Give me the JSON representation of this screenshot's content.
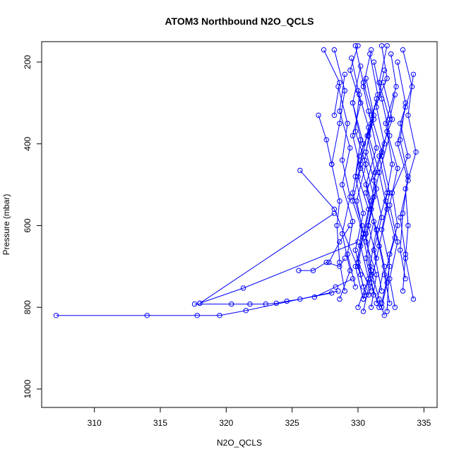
{
  "chart_data": {
    "type": "scatter",
    "title": "ATOM3 Northbound N2O_QCLS",
    "xlabel": "N2O_QCLS",
    "ylabel": "Pressure (mbar)",
    "xlim": [
      306,
      336
    ],
    "ylim": [
      1045,
      150
    ],
    "y_reversed": true,
    "x_ticks": [
      310,
      315,
      320,
      325,
      330,
      335
    ],
    "y_ticks": [
      200,
      400,
      600,
      800,
      1000
    ],
    "grid": false,
    "series": [
      {
        "color": "#0000ff",
        "marker": "open-circle",
        "line": true,
        "segments": [
          [
            [
              331.8,
              160
            ],
            [
              332.2,
              240
            ],
            [
              331.0,
              330
            ],
            [
              331.8,
              420
            ],
            [
              330.6,
              520
            ],
            [
              331.4,
              610
            ],
            [
              330.9,
              700
            ],
            [
              331.6,
              780
            ],
            [
              332.0,
              820
            ]
          ],
          [
            [
              329.8,
              160
            ],
            [
              330.4,
              250
            ],
            [
              331.2,
              340
            ],
            [
              330.1,
              430
            ],
            [
              329.6,
              520
            ],
            [
              330.3,
              600
            ],
            [
              330.0,
              690
            ],
            [
              331.0,
              760
            ]
          ],
          [
            [
              333.4,
              170
            ],
            [
              334.1,
              260
            ],
            [
              333.2,
              350
            ],
            [
              333.8,
              430
            ],
            [
              332.6,
              520
            ],
            [
              333.0,
              600
            ],
            [
              332.4,
              670
            ],
            [
              332.2,
              810
            ]
          ],
          [
            [
              328.2,
              170
            ],
            [
              329.0,
              270
            ],
            [
              328.6,
              350
            ],
            [
              328.0,
              450
            ],
            [
              328.6,
              540
            ],
            [
              328.4,
              600
            ],
            [
              328.6,
              690
            ],
            [
              329.0,
              760
            ]
          ],
          [
            [
              330.9,
              180
            ],
            [
              331.5,
              280
            ],
            [
              330.7,
              380
            ],
            [
              331.3,
              470
            ],
            [
              331.0,
              560
            ],
            [
              330.6,
              640
            ],
            [
              331.4,
              720
            ],
            [
              331.0,
              800
            ]
          ],
          [
            [
              332.5,
              180
            ],
            [
              332.9,
              260
            ],
            [
              332.1,
              350
            ],
            [
              332.6,
              450
            ],
            [
              332.1,
              540
            ],
            [
              332.8,
              630
            ],
            [
              332.0,
              720
            ],
            [
              332.4,
              790
            ]
          ],
          [
            [
              329.5,
              190
            ],
            [
              330.1,
              280
            ],
            [
              329.8,
              370
            ],
            [
              330.6,
              450
            ],
            [
              329.9,
              540
            ],
            [
              330.4,
              620
            ],
            [
              330.0,
              700
            ],
            [
              330.6,
              770
            ]
          ],
          [
            [
              331.2,
              200
            ],
            [
              331.8,
              290
            ],
            [
              332.4,
              380
            ],
            [
              331.6,
              470
            ],
            [
              332.2,
              560
            ],
            [
              331.6,
              650
            ],
            [
              332.2,
              740
            ],
            [
              331.8,
              800
            ]
          ],
          [
            [
              333.0,
              200
            ],
            [
              333.6,
              300
            ],
            [
              333.2,
              390
            ],
            [
              333.8,
              480
            ],
            [
              333.4,
              570
            ],
            [
              333.2,
              660
            ],
            [
              333.6,
              730
            ]
          ],
          [
            [
              330.2,
              210
            ],
            [
              329.6,
              300
            ],
            [
              330.4,
              400
            ],
            [
              330.0,
              480
            ],
            [
              330.8,
              560
            ],
            [
              330.2,
              650
            ],
            [
              330.8,
              730
            ],
            [
              330.0,
              800
            ]
          ],
          [
            [
              332.0,
              220
            ],
            [
              331.4,
              310
            ],
            [
              332.0,
              400
            ],
            [
              331.2,
              490
            ],
            [
              331.8,
              580
            ],
            [
              331.2,
              660
            ],
            [
              331.8,
              760
            ]
          ],
          [
            [
              329.0,
              230
            ],
            [
              328.6,
              320
            ],
            [
              329.4,
              410
            ],
            [
              328.8,
              500
            ],
            [
              329.6,
              590
            ],
            [
              329.2,
              670
            ],
            [
              329.8,
              750
            ]
          ],
          [
            [
              334.2,
              230
            ],
            [
              333.8,
              330
            ],
            [
              334.4,
              420
            ],
            [
              333.6,
              510
            ],
            [
              333.8,
              600
            ],
            [
              333.6,
              680
            ],
            [
              334.2,
              780
            ]
          ],
          [
            [
              330.6,
              240
            ],
            [
              331.2,
              330
            ],
            [
              330.6,
              420
            ],
            [
              331.4,
              510
            ],
            [
              330.8,
              600
            ],
            [
              331.4,
              680
            ],
            [
              330.8,
              770
            ]
          ],
          [
            [
              331.9,
              250
            ],
            [
              332.6,
              340
            ],
            [
              331.6,
              430
            ],
            [
              332.2,
              520
            ],
            [
              331.4,
              610
            ],
            [
              332.0,
              700
            ],
            [
              331.4,
              790
            ]
          ],
          [
            [
              328.5,
              260
            ],
            [
              329.2,
              350
            ],
            [
              328.8,
              440
            ],
            [
              329.4,
              530
            ],
            [
              328.8,
              620
            ],
            [
              329.4,
              710
            ],
            [
              328.6,
              780
            ]
          ],
          [
            [
              330.0,
              270
            ],
            [
              330.8,
              360
            ],
            [
              330.2,
              450
            ],
            [
              331.0,
              540
            ],
            [
              330.4,
              630
            ],
            [
              331.0,
              720
            ],
            [
              330.4,
              810
            ]
          ],
          [
            [
              332.8,
              280
            ],
            [
              332.2,
              370
            ],
            [
              333.0,
              460
            ],
            [
              332.4,
              550
            ],
            [
              333.0,
              640
            ],
            [
              332.4,
              730
            ],
            [
              332.8,
              800
            ]
          ],
          [
            [
              331.4,
              290
            ],
            [
              330.8,
              380
            ],
            [
              331.6,
              470
            ],
            [
              331.0,
              560
            ],
            [
              331.6,
              650
            ],
            [
              331.0,
              740
            ],
            [
              331.6,
              800
            ]
          ],
          [
            [
              329.6,
              300
            ],
            [
              330.2,
              390
            ],
            [
              329.8,
              480
            ],
            [
              330.4,
              570
            ],
            [
              329.8,
              660
            ],
            [
              330.4,
              750
            ]
          ],
          [
            [
              333.6,
              310
            ],
            [
              333.0,
              400
            ],
            [
              333.8,
              490
            ],
            [
              333.2,
              580
            ],
            [
              333.6,
              670
            ],
            [
              333.4,
              760
            ]
          ],
          [
            [
              330.8,
              320
            ],
            [
              331.4,
              410
            ],
            [
              330.6,
              500
            ],
            [
              331.2,
              590
            ],
            [
              330.6,
              680
            ],
            [
              331.2,
              770
            ]
          ],
          [
            [
              331.0,
              170
            ],
            [
              330.4,
              260
            ],
            [
              331.0,
              350
            ],
            [
              330.5,
              440
            ],
            [
              331.2,
              530
            ],
            [
              330.6,
              620
            ],
            [
              331.0,
              710
            ],
            [
              330.4,
              780
            ]
          ],
          [
            [
              332.2,
              160
            ],
            [
              331.6,
              250
            ],
            [
              332.4,
              340
            ],
            [
              331.8,
              430
            ],
            [
              332.4,
              520
            ],
            [
              331.8,
              610
            ],
            [
              332.4,
              700
            ],
            [
              331.8,
              790
            ]
          ],
          [
            [
              330.0,
              160
            ],
            [
              329.4,
              220
            ],
            [
              330.2,
              300
            ],
            [
              329.6,
              380
            ],
            [
              330.2,
              460
            ],
            [
              329.6,
              540
            ],
            [
              330.4,
              620
            ],
            [
              329.8,
              700
            ],
            [
              330.4,
              780
            ]
          ],
          [
            [
              327.0,
              330
            ],
            [
              327.6,
              390
            ],
            [
              328.0,
              450
            ]
          ],
          [
            [
              325.6,
              465
            ],
            [
              328.2,
              560
            ],
            [
              330.2,
              720
            ]
          ],
          [
            [
              327.4,
              170
            ],
            [
              328.6,
              250
            ],
            [
              328.2,
              330
            ]
          ],
          [
            [
              307.1,
              820
            ],
            [
              314.0,
              820
            ],
            [
              317.8,
              820
            ],
            [
              319.5,
              820
            ],
            [
              321.5,
              808
            ],
            [
              328.5,
              760
            ]
          ],
          [
            [
              317.6,
              792
            ],
            [
              320.4,
              792
            ],
            [
              321.8,
              792
            ],
            [
              323.0,
              792
            ],
            [
              323.8,
              790
            ],
            [
              324.6,
              785
            ],
            [
              325.6,
              780
            ],
            [
              328.0,
              765
            ]
          ],
          [
            [
              318.0,
              790
            ],
            [
              321.3,
              753
            ],
            [
              330.0,
              640
            ]
          ],
          [
            [
              318.0,
              790
            ],
            [
              328.2,
              570
            ]
          ],
          [
            [
              325.5,
              710
            ],
            [
              326.6,
              710
            ],
            [
              327.6,
              690
            ],
            [
              328.6,
              700
            ],
            [
              329.0,
              680
            ]
          ],
          [
            [
              326.7,
              775
            ],
            [
              328.3,
              750
            ],
            [
              329.6,
              730
            ]
          ],
          [
            [
              327.8,
              690
            ],
            [
              328.6,
              640
            ],
            [
              329.4,
              600
            ]
          ]
        ]
      }
    ]
  }
}
